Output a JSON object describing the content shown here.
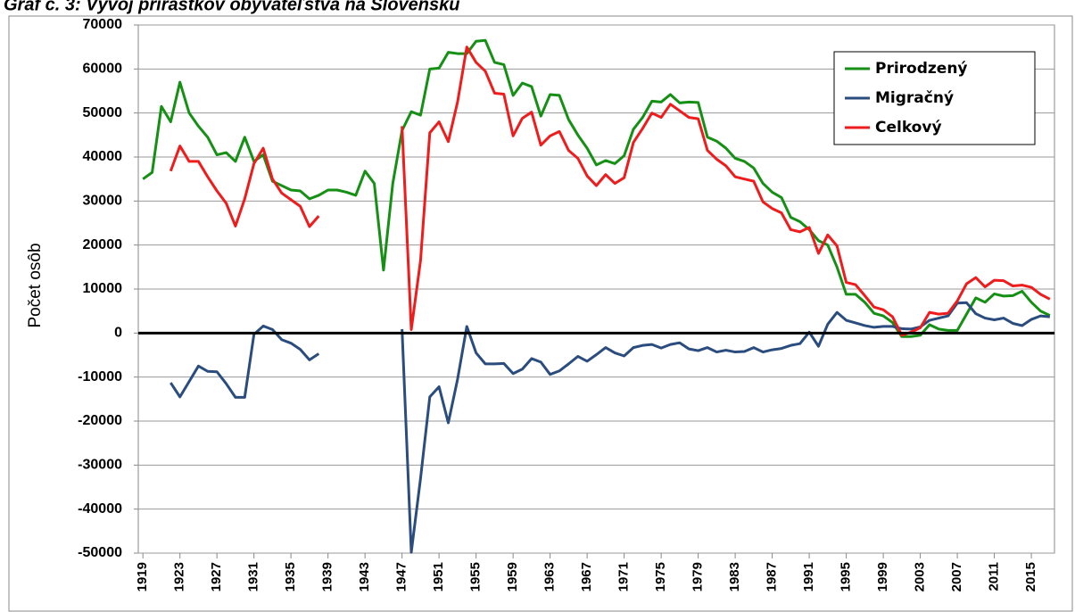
{
  "chart_data": {
    "type": "line",
    "title": "Graf č. 3: Vývoj prírastkov obyvateľstva na Slovensku",
    "y_label": "Počet osôb",
    "x": [
      1919,
      1920,
      1921,
      1922,
      1923,
      1924,
      1925,
      1926,
      1927,
      1928,
      1929,
      1930,
      1931,
      1932,
      1933,
      1934,
      1935,
      1936,
      1937,
      1938,
      1939,
      1940,
      1941,
      1942,
      1943,
      1944,
      1945,
      1946,
      1947,
      1948,
      1949,
      1950,
      1951,
      1952,
      1953,
      1954,
      1955,
      1956,
      1957,
      1958,
      1959,
      1960,
      1961,
      1962,
      1963,
      1964,
      1965,
      1966,
      1967,
      1968,
      1969,
      1970,
      1971,
      1972,
      1973,
      1974,
      1975,
      1976,
      1977,
      1978,
      1979,
      1980,
      1981,
      1982,
      1983,
      1984,
      1985,
      1986,
      1987,
      1988,
      1989,
      1990,
      1991,
      1992,
      1993,
      1994,
      1995,
      1996,
      1997,
      1998,
      1999,
      2000,
      2001,
      2002,
      2003,
      2004,
      2005,
      2006,
      2007,
      2008,
      2009,
      2010,
      2011,
      2012,
      2013,
      2014,
      2015,
      2016,
      2017
    ],
    "series": [
      {
        "name": "Prirodzený",
        "color": "#159015",
        "values": [
          35000,
          36500,
          51500,
          48000,
          57000,
          50000,
          47000,
          44500,
          40500,
          41000,
          39000,
          44500,
          39000,
          40500,
          34500,
          33500,
          32500,
          32300,
          30500,
          31300,
          32500,
          32500,
          32000,
          31300,
          36800,
          34000,
          14300,
          34000,
          46000,
          50300,
          49500,
          60000,
          60200,
          63800,
          63500,
          63500,
          66300,
          66500,
          61500,
          61000,
          54000,
          56800,
          56000,
          49300,
          54200,
          54000,
          48500,
          45000,
          42000,
          38200,
          39200,
          38500,
          40300,
          46300,
          49000,
          52700,
          52500,
          54200,
          52300,
          52500,
          52400,
          44500,
          43600,
          42000,
          39700,
          39000,
          37500,
          34000,
          32000,
          30800,
          26300,
          25300,
          23500,
          21000,
          20000,
          15000,
          8800,
          8800,
          7000,
          4500,
          3900,
          2400,
          -800,
          -800,
          -500,
          1900,
          900,
          600,
          600,
          4300,
          8000,
          7000,
          8900,
          8400,
          8500,
          9500,
          7000,
          5000,
          4000
        ]
      },
      {
        "name": "Migračný",
        "color": "#2a4c7e",
        "values": [
          null,
          null,
          null,
          -11300,
          -14500,
          -11000,
          -7500,
          -8700,
          -8800,
          -11500,
          -14600,
          -14600,
          -300,
          1600,
          800,
          -1500,
          -2300,
          -3700,
          -6100,
          -4700,
          null,
          null,
          null,
          null,
          null,
          null,
          null,
          null,
          900,
          -49800,
          -33000,
          -14500,
          -12200,
          -20400,
          -10500,
          1500,
          -4500,
          -7000,
          -7000,
          -6900,
          -9200,
          -8200,
          -5800,
          -6600,
          -9400,
          -8600,
          -7000,
          -5300,
          -6400,
          -4900,
          -3300,
          -4500,
          -5200,
          -3300,
          -2800,
          -2600,
          -3400,
          -2600,
          -2200,
          -3600,
          -4000,
          -3300,
          -4300,
          -3900,
          -4300,
          -4200,
          -3300,
          -4300,
          -3800,
          -3500,
          -2800,
          -2400,
          200,
          -3000,
          2000,
          4700,
          2900,
          2300,
          1700,
          1300,
          1500,
          1500,
          1000,
          900,
          1400,
          2900,
          3400,
          3900,
          6800,
          6900,
          4400,
          3400,
          3000,
          3400,
          2200,
          1700,
          3100,
          3900,
          3700
        ]
      },
      {
        "name": "Celkový",
        "color": "#ee1c1c",
        "values": [
          null,
          null,
          null,
          36800,
          42500,
          39000,
          39000,
          35500,
          32300,
          29500,
          24300,
          30500,
          38500,
          42000,
          35000,
          31800,
          30300,
          28800,
          24200,
          26600,
          null,
          null,
          null,
          null,
          null,
          null,
          null,
          null,
          47000,
          800,
          16500,
          45500,
          48000,
          43500,
          52500,
          65000,
          61500,
          59500,
          54500,
          54300,
          44800,
          48800,
          50200,
          42700,
          44800,
          45800,
          41500,
          39700,
          35700,
          33500,
          36000,
          34000,
          35300,
          43300,
          46500,
          50000,
          49000,
          52000,
          50500,
          49000,
          48700,
          41500,
          39500,
          38000,
          35500,
          35000,
          34500,
          29800,
          28300,
          27300,
          23500,
          23000,
          24000,
          18100,
          22300,
          19800,
          11500,
          11000,
          8500,
          5900,
          5300,
          3700,
          -500,
          200,
          1200,
          4700,
          4300,
          4500,
          7300,
          11200,
          12600,
          10500,
          12000,
          11900,
          10700,
          10900,
          10400,
          8800,
          7700
        ]
      }
    ],
    "xlim": [
      1918.5,
      2017.5
    ],
    "xticks": [
      1919,
      1923,
      1927,
      1931,
      1935,
      1939,
      1943,
      1947,
      1951,
      1955,
      1959,
      1963,
      1967,
      1971,
      1975,
      1979,
      1983,
      1987,
      1991,
      1995,
      1999,
      2003,
      2007,
      2011,
      2015
    ],
    "ylim": [
      -50000,
      70000
    ],
    "yticks": [
      -50000,
      -40000,
      -30000,
      -20000,
      -10000,
      0,
      10000,
      20000,
      30000,
      40000,
      50000,
      60000,
      70000
    ],
    "grid": true,
    "legend": "upper right"
  }
}
